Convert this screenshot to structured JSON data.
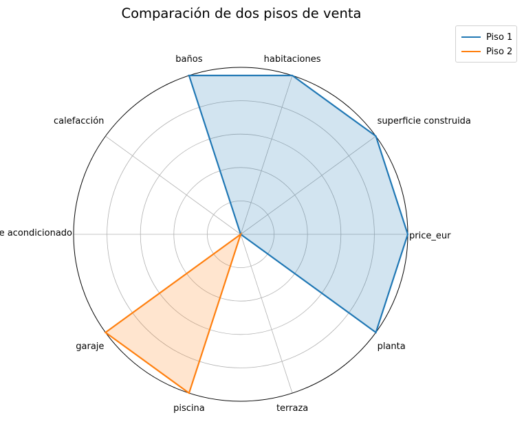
{
  "chart_data": {
    "type": "radar",
    "title": "Comparación de dos pisos de venta",
    "categories": [
      "price_eur",
      "superficie construida",
      "habitaciones",
      "baños",
      "calefacción",
      "aire acondicionado",
      "garaje",
      "piscina",
      "terraza",
      "planta"
    ],
    "rlim": [
      0,
      1
    ],
    "grid": true,
    "legend_position": "top-right, outside",
    "series": [
      {
        "name": "Piso 1",
        "color": "#1f77b4",
        "values": [
          1,
          1,
          1,
          1,
          0,
          0,
          0,
          0,
          0,
          1
        ]
      },
      {
        "name": "Piso 2",
        "color": "#ff7f0e",
        "values": [
          0,
          0,
          0,
          0,
          0,
          0,
          1,
          1,
          0,
          0
        ]
      }
    ]
  }
}
